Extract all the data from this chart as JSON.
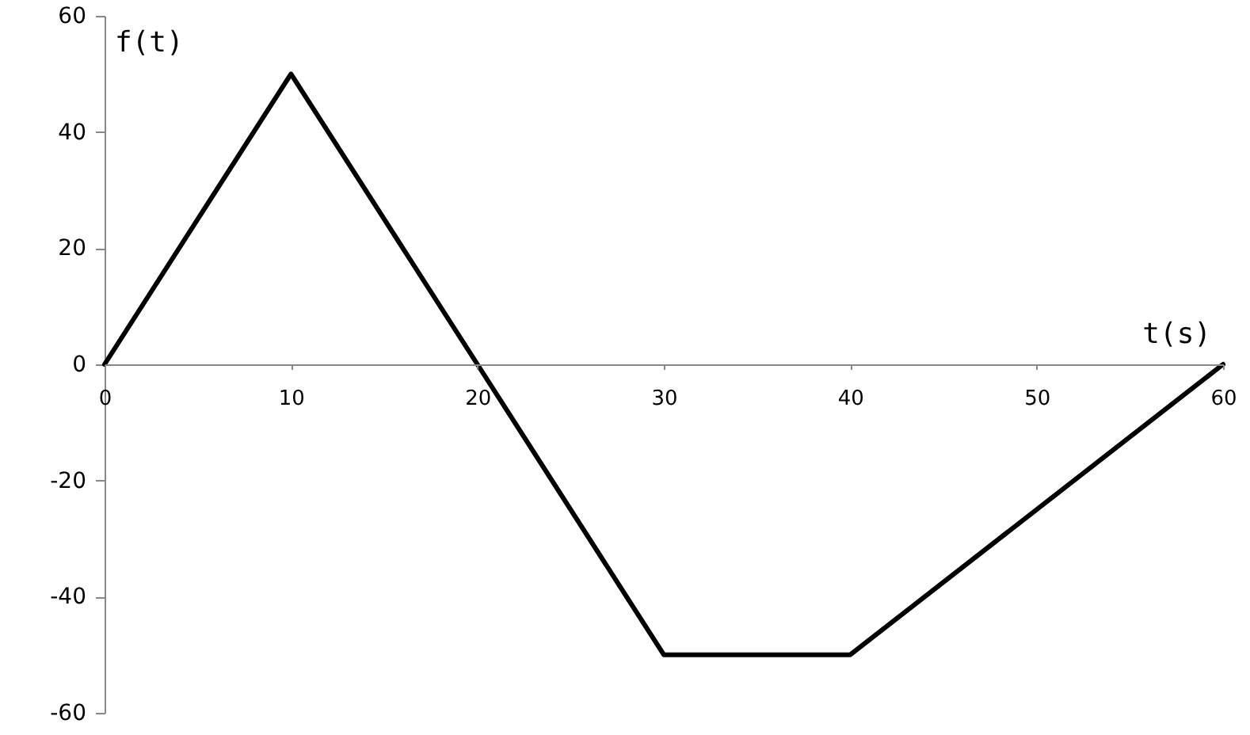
{
  "chart_data": {
    "type": "line",
    "xlabel": "t(s)",
    "ylabel": "f(t)",
    "x": [
      0,
      10,
      20,
      30,
      40,
      60
    ],
    "series": [
      {
        "color": "#000000",
        "values": [
          0,
          50,
          0,
          -50,
          -50,
          0
        ]
      }
    ],
    "xlim": [
      0,
      60
    ],
    "xticks": [
      0,
      10,
      20,
      30,
      40,
      50,
      60
    ],
    "ylim": [
      -60,
      60
    ],
    "yticks": [
      -60,
      -40,
      -20,
      0,
      20,
      40,
      60
    ],
    "grid": false,
    "marker": "none",
    "line_style": "solid"
  }
}
